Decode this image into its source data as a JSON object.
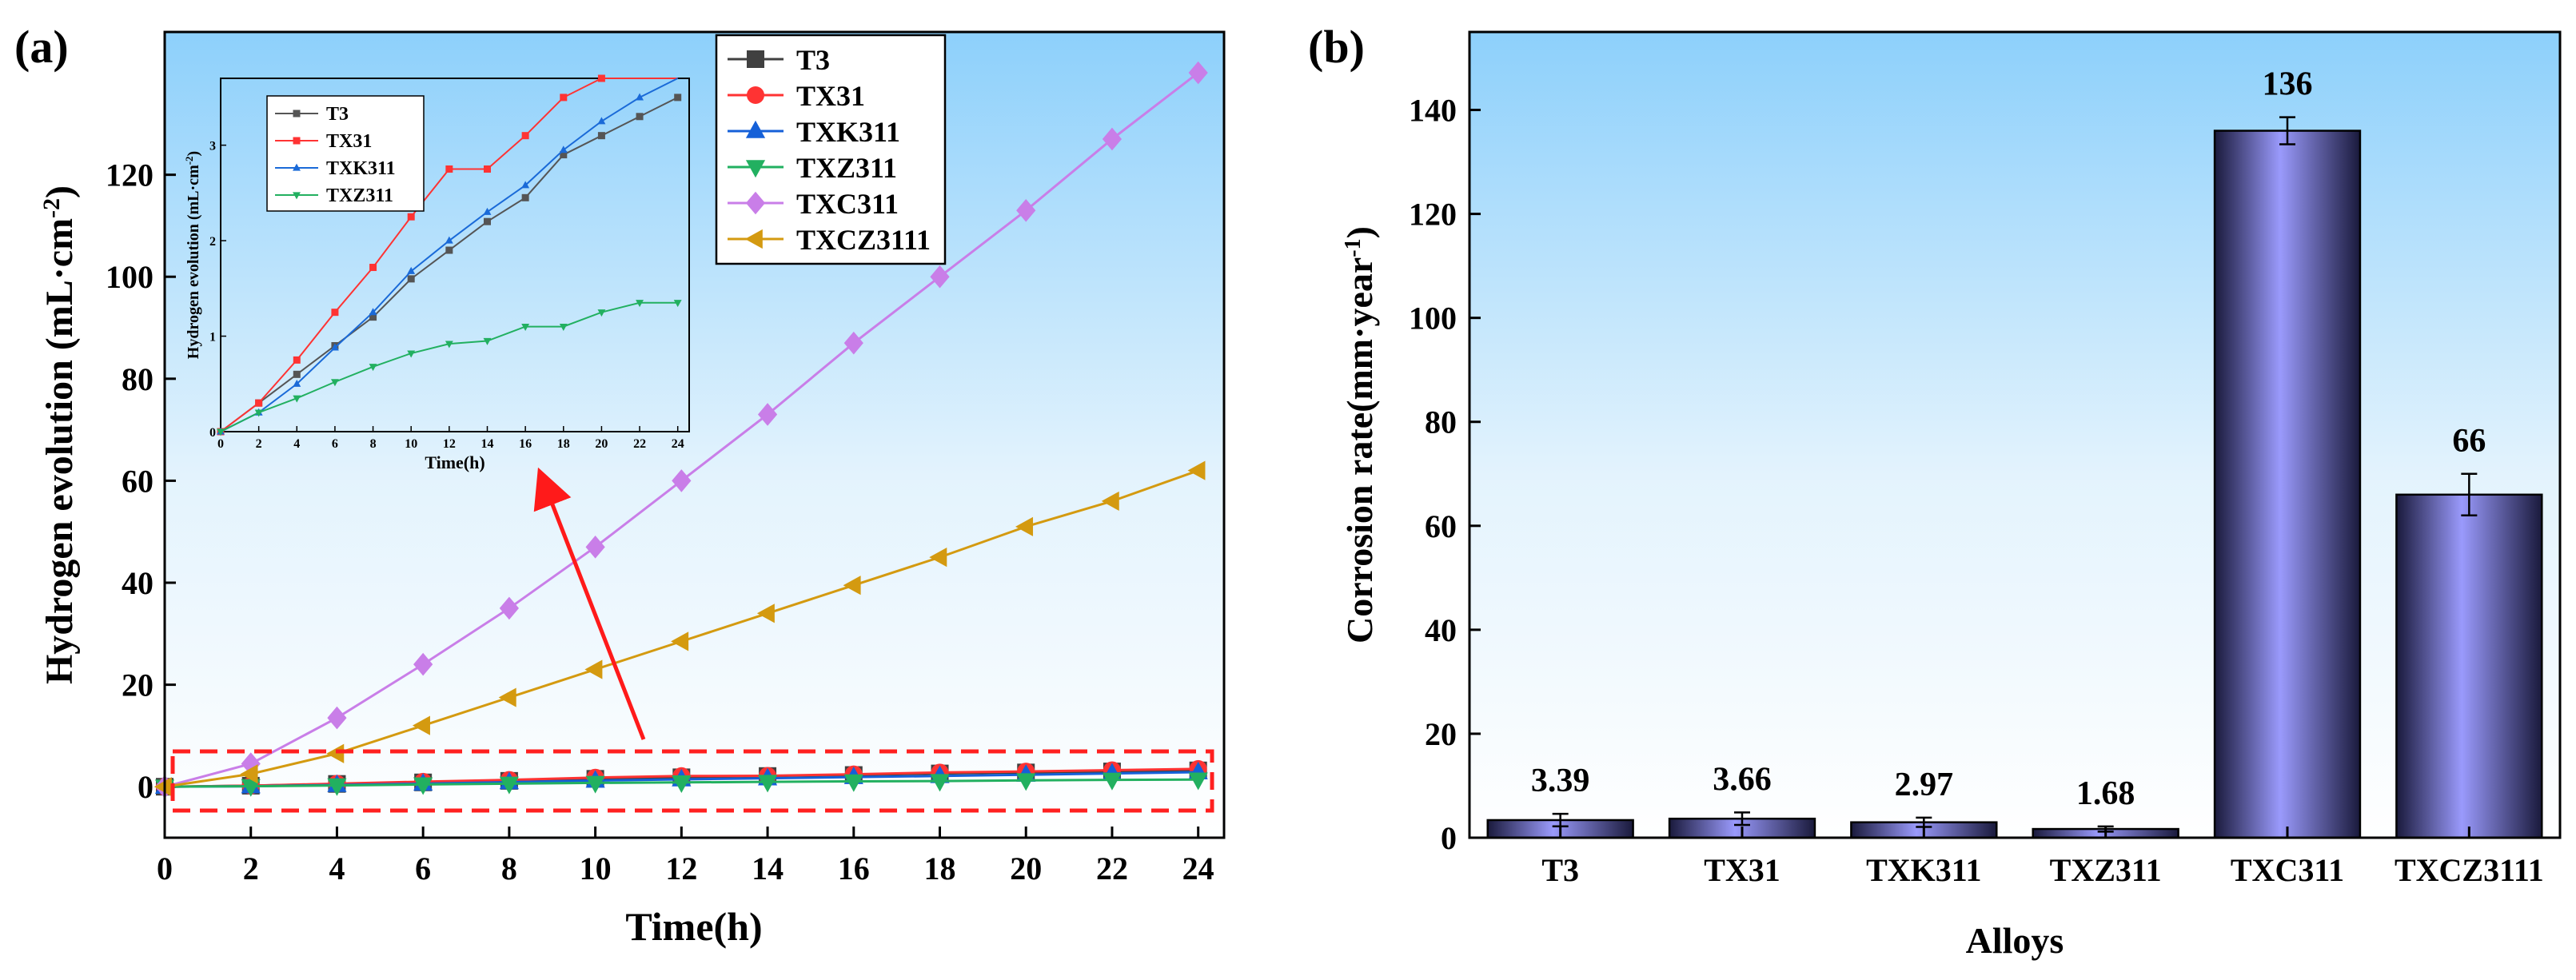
{
  "panel_a_label": "(a)",
  "panel_b_label": "(b)",
  "chart_data": [
    {
      "type": "line",
      "xlabel": "Time(h)",
      "ylabel": "Hydrogen evolution (mL·cm",
      "ylabel_sup": "-2",
      "ylabel_close": ")",
      "xlim": [
        0,
        24.6
      ],
      "ylim": [
        -10,
        148
      ],
      "xticks": [
        0,
        2,
        4,
        6,
        8,
        10,
        12,
        14,
        16,
        18,
        20,
        22,
        24
      ],
      "yticks": [
        0,
        20,
        40,
        60,
        80,
        100,
        120
      ],
      "x": [
        0,
        2,
        4,
        6,
        8,
        10,
        12,
        14,
        16,
        18,
        20,
        22,
        24
      ],
      "legend_position": "top-right",
      "series": [
        {
          "name": "T3",
          "color": "#404040",
          "marker": "square",
          "values": [
            0,
            0.2,
            0.55,
            0.85,
            1.15,
            1.55,
            1.85,
            2.1,
            2.3,
            2.6,
            2.8,
            3.0,
            3.2
          ]
        },
        {
          "name": "TX31",
          "color": "#ff3333",
          "marker": "circle",
          "values": [
            0,
            0.2,
            0.6,
            1.0,
            1.35,
            1.8,
            2.1,
            2.15,
            2.45,
            2.8,
            3.0,
            3.25,
            3.5
          ]
        },
        {
          "name": "TXK311",
          "color": "#1560d8",
          "marker": "triangle-up",
          "values": [
            0,
            0.1,
            0.35,
            0.6,
            0.9,
            1.2,
            1.45,
            1.65,
            1.9,
            2.1,
            2.35,
            2.6,
            2.85
          ]
        },
        {
          "name": "TXZ311",
          "color": "#22b060",
          "marker": "triangle-down",
          "values": [
            0,
            0.1,
            0.25,
            0.45,
            0.6,
            0.75,
            0.85,
            0.95,
            1.05,
            1.1,
            1.25,
            1.35,
            1.4
          ]
        },
        {
          "name": "TXC311",
          "color": "#c97ee8",
          "marker": "diamond",
          "values": [
            0,
            4.5,
            13.5,
            24,
            35,
            47,
            60,
            73,
            87,
            100,
            113,
            127,
            140
          ]
        },
        {
          "name": "TXCZ3111",
          "color": "#d49a10",
          "marker": "triangle-left",
          "values": [
            0,
            2.5,
            6.5,
            12,
            17.5,
            23,
            28.5,
            34,
            39.5,
            45,
            51,
            56,
            62
          ]
        }
      ],
      "annotations": [
        "dashed red box around low-value series",
        "red arrow pointing to inset"
      ]
    },
    {
      "type": "line",
      "role": "inset",
      "xlabel": "Time(h)",
      "ylabel": "Hydrogen evolution (mL·cm",
      "ylabel_sup": "-2",
      "ylabel_close": ")",
      "xlim": [
        0,
        24.6
      ],
      "ylim": [
        0,
        3.7
      ],
      "xticks": [
        0,
        2,
        4,
        6,
        8,
        10,
        12,
        14,
        16,
        18,
        20,
        22,
        24
      ],
      "yticks": [
        0,
        1,
        2,
        3
      ],
      "x": [
        0,
        2,
        4,
        6,
        8,
        10,
        12,
        14,
        16,
        18,
        20,
        22,
        24
      ],
      "legend_position": "top-left",
      "series": [
        {
          "name": "T3",
          "color": "#555555",
          "marker": "square",
          "values": [
            0,
            0.3,
            0.6,
            0.9,
            1.2,
            1.6,
            1.9,
            2.2,
            2.45,
            2.9,
            3.1,
            3.3,
            3.5
          ]
        },
        {
          "name": "TX31",
          "color": "#ff3333",
          "marker": "square",
          "values": [
            0,
            0.3,
            0.75,
            1.25,
            1.72,
            2.25,
            2.75,
            2.75,
            3.1,
            3.5,
            3.7,
            4.0,
            4.35
          ]
        },
        {
          "name": "TXK311",
          "color": "#1a6ad8",
          "marker": "triangle-up",
          "values": [
            0,
            0.2,
            0.5,
            0.88,
            1.25,
            1.68,
            2.0,
            2.3,
            2.58,
            2.95,
            3.25,
            3.5,
            3.75
          ]
        },
        {
          "name": "TXZ311",
          "color": "#22b060",
          "marker": "triangle-down",
          "values": [
            0,
            0.2,
            0.35,
            0.52,
            0.68,
            0.82,
            0.92,
            0.95,
            1.1,
            1.1,
            1.25,
            1.35,
            1.35
          ]
        }
      ]
    },
    {
      "type": "bar",
      "xlabel": "Alloys",
      "ylabel": "Corrosion rate(mm·year",
      "ylabel_sup": "-1",
      "ylabel_close": ")",
      "ylim": [
        0,
        155
      ],
      "yticks": [
        0,
        20,
        40,
        60,
        80,
        100,
        120,
        140
      ],
      "categories": [
        "T3",
        "TX31",
        "TXK311",
        "TXZ311",
        "TXC311",
        "TXCZ3111"
      ],
      "values": [
        3.39,
        3.66,
        2.97,
        1.68,
        136,
        66
      ],
      "value_labels": [
        "3.39",
        "3.66",
        "2.97",
        "1.68",
        "136",
        "66"
      ],
      "errors": [
        1.2,
        1.2,
        0.9,
        0.5,
        2.6,
        4.0
      ],
      "bar_color": "#7a7ae0"
    }
  ]
}
